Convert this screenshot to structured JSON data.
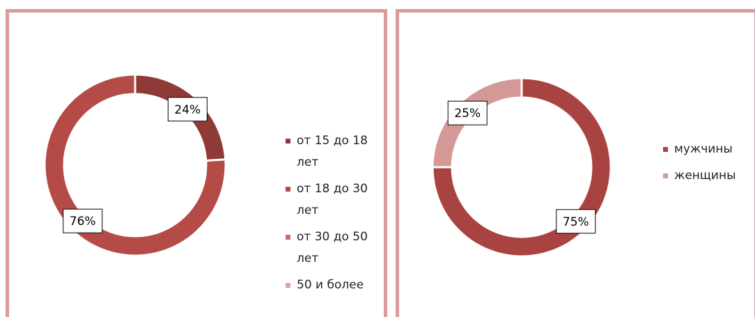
{
  "chart_data": [
    {
      "type": "donut",
      "categories": [
        "от 15 до 18 лет",
        "от 18 до 30 лет",
        "от 30 до 50 лет",
        "50 и более"
      ],
      "values": [
        24,
        76,
        0,
        0
      ],
      "value_labels": [
        "24%",
        "76%",
        null,
        null
      ],
      "colors": [
        "#8e3a36",
        "#b54b47",
        "#c86c68",
        "#dba5a3"
      ]
    },
    {
      "type": "donut",
      "categories": [
        "мужчины",
        "женщины"
      ],
      "values": [
        75,
        25
      ],
      "value_labels": [
        "75%",
        "25%"
      ],
      "colors": [
        "#a94341",
        "#d49896"
      ]
    }
  ]
}
